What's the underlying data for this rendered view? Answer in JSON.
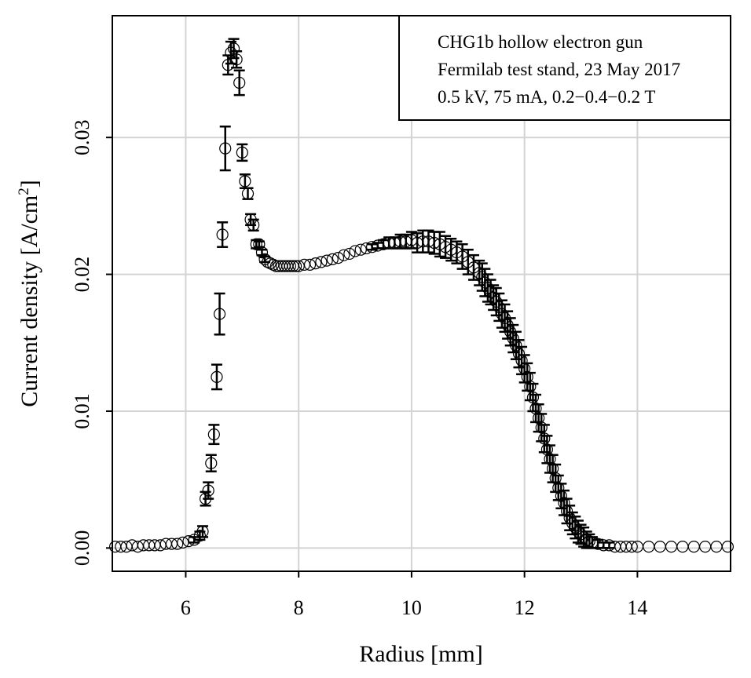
{
  "chart_data": {
    "type": "scatter",
    "xlabel": "Radius [mm]",
    "ylabel": "Current density [A/cm",
    "ylabel_sup": "2",
    "ylabel_suffix": "]",
    "xlim": [
      4.7,
      15.65
    ],
    "ylim": [
      -0.0017,
      0.0389
    ],
    "xticks": [
      6,
      8,
      10,
      12,
      14
    ],
    "xtick_labels": [
      "6",
      "8",
      "10",
      "12",
      "14"
    ],
    "yticks": [
      0.0,
      0.01,
      0.02,
      0.03
    ],
    "ytick_labels": [
      "0.00",
      "0.01",
      "0.02",
      "0.03"
    ],
    "grid": true,
    "legend_position": "top-right",
    "annotation": [
      "CHG1b hollow electron gun",
      "Fermilab test stand, 23 May 2017",
      "0.5 kV, 75 mA, 0.2−0.4−0.2 T"
    ],
    "marker": "open-circle",
    "error_bars": true,
    "series": [
      {
        "x": [
          4.75,
          4.85,
          4.95,
          5.05,
          5.15,
          5.25,
          5.35,
          5.45,
          5.55,
          5.65,
          5.75,
          5.85,
          5.95,
          6.05,
          6.15,
          6.25,
          6.3,
          6.35,
          6.4,
          6.45,
          6.5,
          6.55,
          6.6,
          6.65,
          6.7,
          6.75,
          6.8,
          6.85,
          6.9,
          6.95,
          7.0,
          7.05,
          7.1,
          7.15,
          7.2,
          7.25,
          7.3,
          7.35,
          7.4,
          7.45,
          7.5,
          7.55,
          7.6,
          7.65,
          7.7,
          7.75,
          7.8,
          7.85,
          7.9,
          7.95,
          8.0,
          8.1,
          8.2,
          8.3,
          8.4,
          8.5,
          8.6,
          8.7,
          8.8,
          8.9,
          9.0,
          9.1,
          9.2,
          9.3,
          9.4,
          9.5,
          9.6,
          9.7,
          9.8,
          9.9,
          10.0,
          10.1,
          10.2,
          10.3,
          10.4,
          10.5,
          10.6,
          10.7,
          10.8,
          10.9,
          11.0,
          11.1,
          11.2,
          11.25,
          11.3,
          11.35,
          11.4,
          11.45,
          11.5,
          11.55,
          11.6,
          11.65,
          11.7,
          11.75,
          11.8,
          11.85,
          11.9,
          11.95,
          12.0,
          12.05,
          12.1,
          12.15,
          12.2,
          12.25,
          12.3,
          12.35,
          12.4,
          12.45,
          12.5,
          12.55,
          12.6,
          12.65,
          12.7,
          12.75,
          12.8,
          12.85,
          12.9,
          12.95,
          13.0,
          13.05,
          13.1,
          13.15,
          13.2,
          13.3,
          13.4,
          13.5,
          13.6,
          13.7,
          13.8,
          13.9,
          14.0,
          14.2,
          14.4,
          14.6,
          14.8,
          15.0,
          15.2,
          15.4,
          15.6
        ],
        "y": [
          0.0001,
          0.0001,
          0.0001,
          0.0002,
          0.0001,
          0.0002,
          0.0002,
          0.0002,
          0.0002,
          0.0003,
          0.0003,
          0.0003,
          0.0004,
          0.0005,
          0.0006,
          0.0009,
          0.0012,
          0.0036,
          0.0042,
          0.0062,
          0.0083,
          0.0125,
          0.0171,
          0.0229,
          0.0292,
          0.0353,
          0.0362,
          0.0365,
          0.0357,
          0.034,
          0.0289,
          0.0268,
          0.0259,
          0.024,
          0.0236,
          0.0222,
          0.0222,
          0.0216,
          0.0211,
          0.0209,
          0.0208,
          0.0207,
          0.0206,
          0.0206,
          0.0206,
          0.0206,
          0.0206,
          0.0206,
          0.0206,
          0.0206,
          0.0206,
          0.0207,
          0.0207,
          0.0208,
          0.0209,
          0.021,
          0.0211,
          0.0212,
          0.0214,
          0.0215,
          0.0217,
          0.0218,
          0.0219,
          0.022,
          0.0221,
          0.0222,
          0.0223,
          0.0223,
          0.0224,
          0.0224,
          0.0225,
          0.0223,
          0.0224,
          0.0224,
          0.0223,
          0.0222,
          0.022,
          0.0218,
          0.0216,
          0.0213,
          0.0209,
          0.0205,
          0.0201,
          0.0198,
          0.0194,
          0.019,
          0.0187,
          0.0183,
          0.018,
          0.0176,
          0.0171,
          0.0168,
          0.0163,
          0.0158,
          0.0153,
          0.0148,
          0.0142,
          0.0137,
          0.0131,
          0.0125,
          0.0118,
          0.011,
          0.0102,
          0.0095,
          0.0088,
          0.008,
          0.0072,
          0.0065,
          0.0058,
          0.0051,
          0.0044,
          0.0038,
          0.0033,
          0.0027,
          0.0022,
          0.0018,
          0.0015,
          0.0012,
          0.001,
          0.0008,
          0.0006,
          0.0005,
          0.0004,
          0.0003,
          0.0002,
          0.0002,
          0.0001,
          0.0001,
          0.0001,
          0.0001,
          0.0001,
          0.0001,
          0.0001,
          0.0001,
          0.0001,
          0.0001,
          0.0001,
          0.0001,
          0.0001
        ],
        "err": [
          0.0001,
          0.0001,
          0.0001,
          0.0001,
          0.0001,
          0.0001,
          0.0001,
          0.0001,
          0.0001,
          0.0001,
          0.0001,
          0.0001,
          0.0001,
          0.0001,
          0.0002,
          0.0003,
          0.0004,
          0.0005,
          0.0006,
          0.0006,
          0.0007,
          0.0009,
          0.0015,
          0.0009,
          0.0016,
          0.0007,
          0.0008,
          0.0007,
          0.0006,
          0.0009,
          0.0006,
          0.0005,
          0.0004,
          0.0004,
          0.0004,
          0.0003,
          0.0002,
          0.0002,
          0.0002,
          0.0001,
          0.0001,
          0.0001,
          0.0001,
          0.0001,
          0.0001,
          0.0001,
          0.0001,
          0.0001,
          0.0001,
          0.0001,
          0.0001,
          0.0001,
          0.0001,
          0.0001,
          0.0001,
          0.0001,
          0.0001,
          0.0001,
          0.0001,
          0.0001,
          0.0001,
          0.0001,
          0.0001,
          0.0002,
          0.0002,
          0.0003,
          0.0004,
          0.0004,
          0.0005,
          0.0005,
          0.0006,
          0.0007,
          0.0008,
          0.0008,
          0.0008,
          0.0009,
          0.0008,
          0.0008,
          0.0008,
          0.0009,
          0.0009,
          0.0009,
          0.0009,
          0.001,
          0.001,
          0.001,
          0.0009,
          0.0009,
          0.001,
          0.001,
          0.001,
          0.001,
          0.001,
          0.001,
          0.001,
          0.001,
          0.001,
          0.001,
          0.001,
          0.001,
          0.001,
          0.001,
          0.001,
          0.001,
          0.001,
          0.001,
          0.001,
          0.001,
          0.001,
          0.001,
          0.0009,
          0.0009,
          0.0009,
          0.0009,
          0.0009,
          0.0008,
          0.0008,
          0.0008,
          0.0007,
          0.0007,
          0.0006,
          0.0005,
          0.0004,
          0.0003,
          0.0002,
          0.0002,
          0.0001,
          0.0001,
          0.0001,
          0.0001,
          0.0001,
          0.0001,
          0.0001,
          0.0001,
          0.0001,
          0.0001,
          0.0001,
          0.0001,
          0.0001
        ]
      }
    ]
  }
}
